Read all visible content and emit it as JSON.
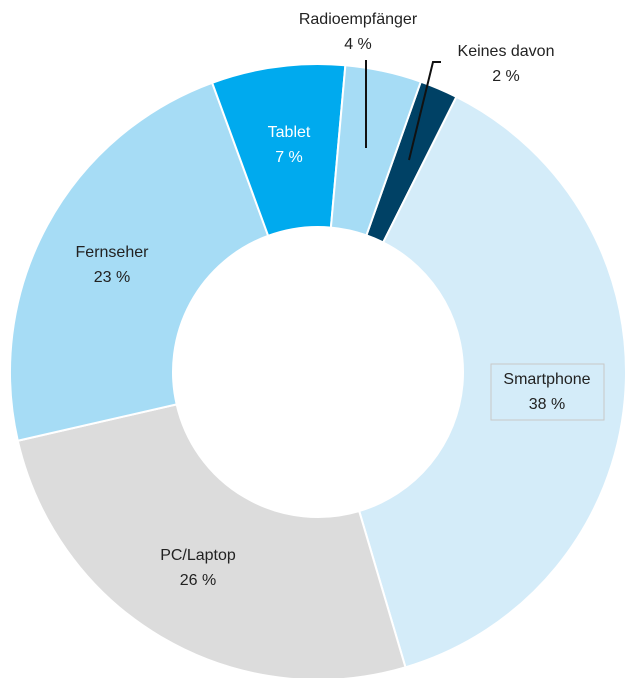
{
  "chart_data": {
    "type": "donut",
    "categories": [
      "Keines davon",
      "Smartphone",
      "PC/Laptop",
      "Fernseher",
      "Tablet",
      "Radioempfänger"
    ],
    "values": [
      2,
      38,
      26,
      23,
      7,
      4
    ],
    "value_labels": [
      "2 %",
      "38 %",
      "26 %",
      "23 %",
      "7 %",
      "4 %"
    ],
    "colors": [
      "#004165",
      "#d4ecf9",
      "#dcdcdc",
      "#a6dcf5",
      "#00aaee",
      "#a6dcf5"
    ]
  }
}
